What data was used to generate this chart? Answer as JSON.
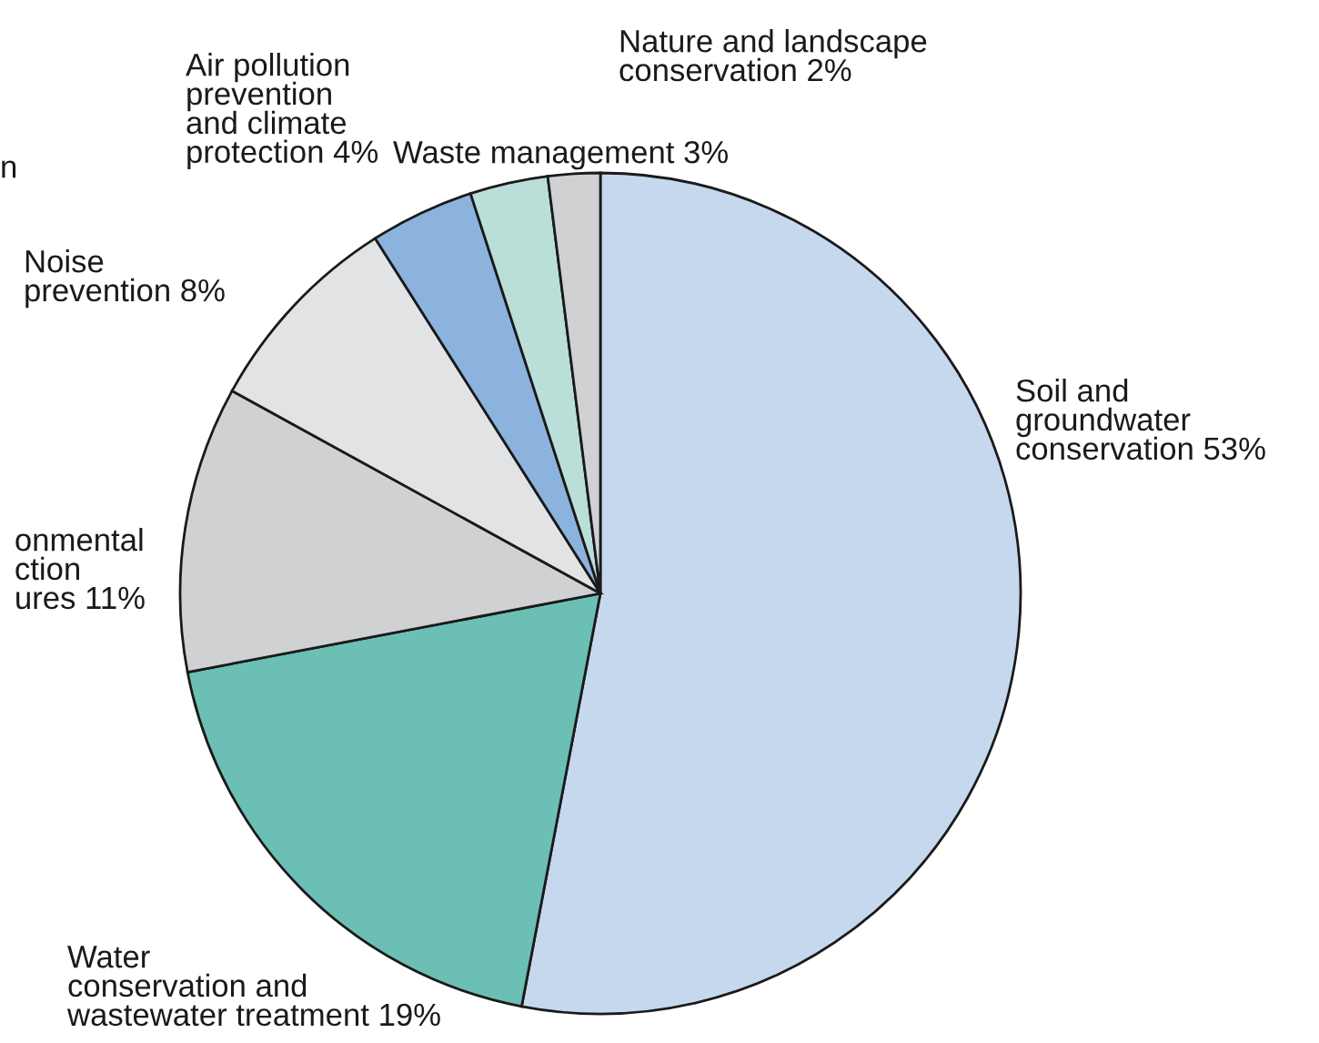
{
  "chart_data": {
    "type": "pie",
    "categories": [
      "Soil and\ngroundwater\nconservation 53%",
      "Water\nconservation and\nwastewater treatment 19%",
      "onmental\nction\nures 11%",
      "Noise\nprevention 8%",
      "Air pollution\nprevention\nand climate\nprotection 4%",
      "Waste management 3%",
      "Nature and landscape\nconservation 2%"
    ],
    "values": [
      53,
      19,
      11,
      8,
      4,
      3,
      2
    ],
    "colors": [
      "#c6d8ee",
      "#6bbfb5",
      "#d0d1d3",
      "#e2e3e5",
      "#8bb3de",
      "#badfd8",
      "#d0d1d3"
    ],
    "annotations": [
      "n"
    ]
  }
}
